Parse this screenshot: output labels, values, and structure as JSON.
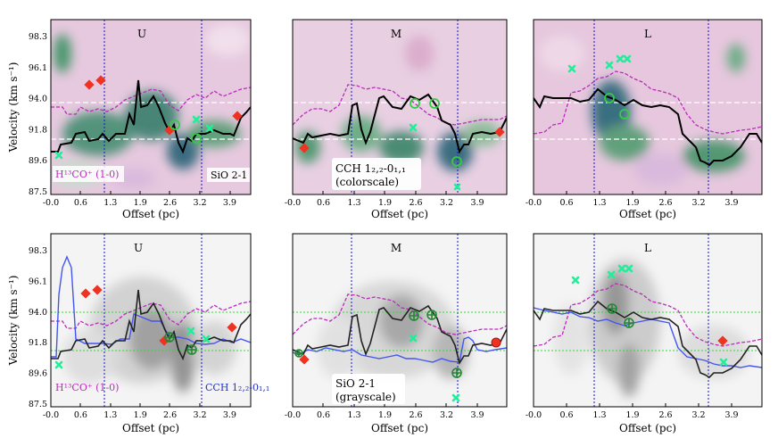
{
  "figure": {
    "ylabel": "Velocity (km s⁻¹)",
    "xlabel": "Offset (pc)"
  },
  "labels": {
    "top_magenta": "H¹³CO⁺ (1-0)",
    "top_sio": "SiO 2-1",
    "top_cch_line1": "CCH 1₂,₂-0₁,₁",
    "top_cch_line2": "(colorscale)",
    "bot_magenta": "H¹³CO⁺ (1-0)",
    "bot_cch": "CCH 1₂,₂-0₁,₁",
    "bot_sio_line1": "SiO 2-1",
    "bot_sio_line2": "(grayscale)"
  },
  "colors": {
    "black_line": "#000000",
    "magenta_line": "#bb2bbb",
    "blue_line": "#4455ee",
    "red_marker": "#ee3322",
    "green_marker": "#33cc44",
    "cyan_marker": "#22ee99",
    "blue_vline": "#1111cc",
    "hline_top": "#ffffff",
    "hline_bottom": "#33dd33"
  },
  "chart_data": [
    {
      "type": "line",
      "panel": "top-U",
      "title": "U",
      "xlim": [
        -0.05,
        4.15
      ],
      "ylim": [
        87.5,
        99.5
      ],
      "xticks": [
        "-0.0",
        "0.6",
        "1.3",
        "1.9",
        "2.6",
        "3.2",
        "3.9"
      ],
      "yticks": [
        "87.5",
        "89.6",
        "91.8",
        "94.0",
        "96.1",
        "98.3"
      ],
      "vlines": [
        1.12,
        3.05
      ],
      "hlines": [
        91.2,
        94.0
      ]
    },
    {
      "type": "line",
      "panel": "top-M",
      "title": "M",
      "xlim": [
        -0.05,
        4.45
      ],
      "ylim": [
        87.5,
        99.5
      ],
      "xticks": [
        "-0.0",
        "0.6",
        "1.3",
        "1.9",
        "2.6",
        "3.2",
        "3.9"
      ],
      "vlines": [
        1.25,
        3.35
      ],
      "hlines": [
        91.2,
        94.0
      ]
    },
    {
      "type": "line",
      "panel": "top-L",
      "title": "L",
      "xlim": [
        -0.05,
        4.45
      ],
      "ylim": [
        87.5,
        99.5
      ],
      "xticks": [
        "-0.0",
        "0.6",
        "1.3",
        "1.9",
        "2.6",
        "3.2",
        "3.9"
      ],
      "vlines": [
        1.25,
        3.55
      ],
      "hlines": [
        91.2,
        94.0
      ]
    },
    {
      "type": "line",
      "panel": "bottom-U",
      "title": "U",
      "xlim": [
        -0.05,
        4.15
      ],
      "ylim": [
        87.5,
        99.5
      ],
      "xticks": [
        "-0.0",
        "0.6",
        "1.3",
        "1.9",
        "2.6",
        "3.2",
        "3.9"
      ],
      "yticks": [
        "87.5",
        "89.6",
        "91.8",
        "94.0",
        "96.1",
        "98.3"
      ],
      "vlines": [
        1.12,
        3.05
      ],
      "hlines": [
        91.2,
        94.0
      ]
    },
    {
      "type": "line",
      "panel": "bottom-M",
      "title": "M",
      "xlim": [
        -0.05,
        4.45
      ],
      "ylim": [
        87.5,
        99.5
      ],
      "xticks": [
        "-0.0",
        "0.6",
        "1.3",
        "1.9",
        "2.6",
        "3.2",
        "3.9"
      ],
      "vlines": [
        1.25,
        3.35
      ],
      "hlines": [
        91.2,
        94.0
      ]
    },
    {
      "type": "line",
      "panel": "bottom-L",
      "title": "L",
      "xlim": [
        -0.05,
        4.45
      ],
      "ylim": [
        87.5,
        99.5
      ],
      "xticks": [
        "-0.0",
        "0.6",
        "1.3",
        "1.9",
        "2.6",
        "3.2",
        "3.9"
      ],
      "vlines": [
        1.25,
        3.55
      ],
      "hlines": [
        91.2,
        94.0
      ]
    }
  ]
}
